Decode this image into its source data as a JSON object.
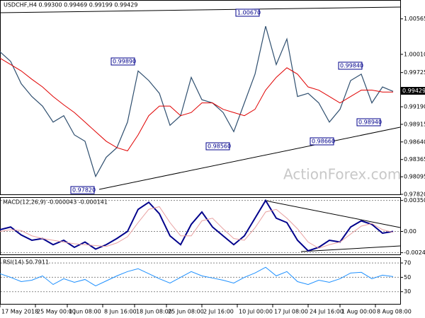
{
  "chart_data": {
    "type": "line",
    "title": "USDCHF,H4 0.99300 0.99469 0.99199 0.99429",
    "current_price": "0.99429",
    "watermark": "ActionForex.com",
    "annotations": [
      "1.00670",
      "0.99890",
      "0.98560",
      "0.97820",
      "0.98660",
      "0.98940",
      "0.99840"
    ],
    "xlim": [
      0,
      113
    ],
    "xticks": [
      {
        "value": 0,
        "label": "17 May 2018"
      },
      {
        "value": 10,
        "label": "25 May 00:00"
      },
      {
        "value": 19,
        "label": "1 Jun 08:00"
      },
      {
        "value": 29,
        "label": "8 Jun 16:00"
      },
      {
        "value": 38,
        "label": "18 Jun 08:00"
      },
      {
        "value": 47,
        "label": "25 Jun 08:00"
      },
      {
        "value": 57,
        "label": "2 Jul 16:00"
      },
      {
        "value": 67,
        "label": "10 Jul 00:00"
      },
      {
        "value": 77,
        "label": "17 Jul 08:00"
      },
      {
        "value": 87,
        "label": "24 Jul 16:00"
      },
      {
        "value": 96,
        "label": "1 Aug 00:00"
      },
      {
        "value": 106,
        "label": "8 Aug 08:00"
      }
    ],
    "x": [
      0,
      3,
      6,
      9,
      12,
      15,
      18,
      21,
      24,
      27,
      30,
      33,
      36,
      39,
      42,
      45,
      48,
      51,
      54,
      57,
      60,
      63,
      66,
      69,
      72,
      75,
      78,
      81,
      84,
      87,
      90,
      93,
      96,
      99,
      102,
      105,
      108,
      111
    ],
    "ylim": [
      0.9782,
      1.0086
    ],
    "yticks": [
      {
        "value": 1.00565,
        "label": "1.00565"
      },
      {
        "value": 1.0001,
        "label": "1.00010"
      },
      {
        "value": 0.99725,
        "label": "0.99725"
      },
      {
        "value": 0.9919,
        "label": "0.99190"
      },
      {
        "value": 0.98915,
        "label": "0.98915"
      },
      {
        "value": 0.9864,
        "label": "0.98640"
      },
      {
        "value": 0.98365,
        "label": "0.98365"
      },
      {
        "value": 0.98095,
        "label": "0.98095"
      },
      {
        "value": 0.9782,
        "label": "0.97820"
      }
    ],
    "series": [
      {
        "color": "#2f4f6f",
        "values": [
          1.0005,
          0.999,
          0.9955,
          0.9935,
          0.992,
          0.9895,
          0.9905,
          0.9875,
          0.9865,
          0.981,
          0.984,
          0.9855,
          0.9895,
          0.9975,
          0.996,
          0.994,
          0.989,
          0.9905,
          0.9965,
          0.993,
          0.9925,
          0.991,
          0.988,
          0.9925,
          0.997,
          1.0045,
          0.9985,
          1.0025,
          0.9935,
          0.994,
          0.9925,
          0.9895,
          0.9915,
          0.996,
          0.997,
          0.9925,
          0.995,
          0.9943
        ]
      },
      {
        "color": "#e00000",
        "values": [
          0.9995,
          0.9985,
          0.9975,
          0.9962,
          0.995,
          0.9935,
          0.9922,
          0.991,
          0.9895,
          0.988,
          0.9865,
          0.9855,
          0.985,
          0.9875,
          0.9905,
          0.992,
          0.992,
          0.9905,
          0.991,
          0.9925,
          0.9925,
          0.9915,
          0.991,
          0.9905,
          0.9915,
          0.9945,
          0.9965,
          0.998,
          0.997,
          0.995,
          0.9945,
          0.9935,
          0.9925,
          0.9935,
          0.9945,
          0.9945,
          0.9942,
          0.9942
        ]
      }
    ],
    "macd": {
      "title": "MACD(12,26,9) -0.000043 -0.000141",
      "ylim": [
        -0.0026,
        0.0038
      ],
      "yticks": [
        {
          "value": 0.003509,
          "label": "0.003509"
        },
        {
          "value": 0,
          "label": "0.00"
        },
        {
          "value": -0.002408,
          "label": "-0.002408"
        }
      ],
      "series": [
        {
          "color": "#00008b",
          "values": [
            0.0002,
            0.0005,
            -0.0004,
            -0.001,
            -0.0008,
            -0.0015,
            -0.001,
            -0.0018,
            -0.0012,
            -0.002,
            -0.0015,
            -0.0008,
            0,
            0.0025,
            0.0033,
            0.002,
            -0.0005,
            -0.0015,
            0.0008,
            0.0022,
            0.0005,
            -0.0005,
            -0.0015,
            -0.0005,
            0.0015,
            0.0035,
            0.0015,
            0.001,
            -0.001,
            -0.0022,
            -0.0018,
            -0.001,
            -0.0012,
            0.0005,
            0.0012,
            0.0008,
            -0.0002,
            0
          ]
        },
        {
          "color": "#e8a0a0",
          "values": [
            0,
            0.0002,
            0.0001,
            -0.0005,
            -0.0008,
            -0.001,
            -0.0012,
            -0.0014,
            -0.0015,
            -0.0016,
            -0.0017,
            -0.0013,
            -0.0006,
            0.001,
            0.0025,
            0.0028,
            0.001,
            -0.0005,
            -0.0005,
            0.0012,
            0.0015,
            0.0003,
            -0.0008,
            -0.001,
            0.0004,
            0.0022,
            0.0025,
            0.0015,
            0.0003,
            -0.0012,
            -0.0019,
            -0.0015,
            -0.0012,
            -0.0003,
            0.0006,
            0.0009,
            0.0002,
            -0.0001
          ]
        }
      ]
    },
    "rsi": {
      "title": "RSI(14) 50.7911",
      "ylim": [
        13,
        77
      ],
      "yticks": [
        70,
        50,
        30
      ],
      "color": "#1e90ff",
      "values": [
        55,
        50,
        44,
        46,
        52,
        40,
        48,
        43,
        47,
        38,
        45,
        52,
        58,
        62,
        55,
        48,
        42,
        50,
        58,
        52,
        49,
        46,
        42,
        50,
        56,
        64,
        52,
        58,
        44,
        40,
        46,
        43,
        48,
        56,
        57,
        48,
        53,
        51
      ]
    }
  }
}
